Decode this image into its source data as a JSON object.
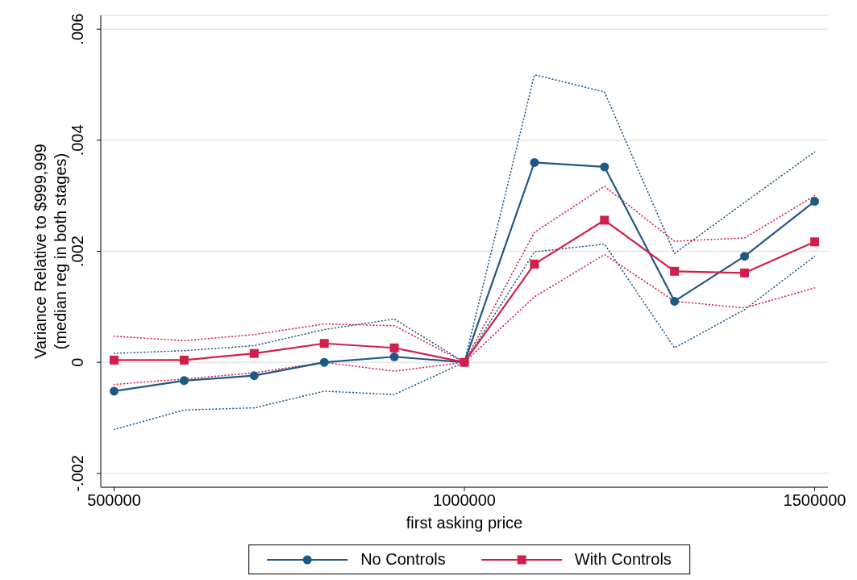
{
  "chart_data": {
    "type": "line",
    "xlabel": "first asking price",
    "ylabel": "Variance Relative to $999,999\n(median reg in both stages)",
    "x": [
      500000,
      600000,
      700000,
      800000,
      900000,
      1000000,
      1100000,
      1200000,
      1300000,
      1400000,
      1500000
    ],
    "xlim": [
      481000,
      1519000
    ],
    "xticks": [
      500000,
      1000000,
      1500000
    ],
    "ylim": [
      -0.00225,
      0.00625
    ],
    "yticks": [
      {
        "value": -0.002,
        "label": "-.002"
      },
      0,
      {
        "value": 0.002,
        "label": ".002"
      },
      {
        "value": 0.004,
        "label": ".004"
      },
      {
        "value": 0.006,
        "label": ".006"
      }
    ],
    "grid": "y",
    "legend": "bottom",
    "series": [
      {
        "color": "#1f5885",
        "marker": "none",
        "line_style": "dotted",
        "values": [
          0.00016,
          0.00021,
          0.0003,
          0.00059,
          0.00078,
          0,
          0.00518,
          0.00487,
          0.00196,
          0.00288,
          0.00379
        ]
      },
      {
        "color": "#1f5885",
        "marker": "none",
        "line_style": "dotted",
        "values": [
          -0.00121,
          -0.00086,
          -0.00082,
          -0.00052,
          -0.00058,
          0,
          0.00199,
          0.00213,
          0.00026,
          0.00095,
          0.00191
        ]
      },
      {
        "color": "#d21f4a",
        "marker": "none",
        "line_style": "dotted",
        "values": [
          0.00047,
          0.00039,
          0.0005,
          0.00069,
          0.00066,
          0,
          0.00234,
          0.00317,
          0.00218,
          0.00224,
          0.003
        ]
      },
      {
        "color": "#d21f4a",
        "marker": "none",
        "line_style": "dotted",
        "values": [
          -0.0004,
          -0.0003,
          -0.00019,
          0,
          -0.00016,
          0,
          0.00118,
          0.00194,
          0.0011,
          0.00098,
          0.00134
        ]
      },
      {
        "name": "No Controls",
        "color": "#1f5885",
        "marker": "circle",
        "line_style": "solid",
        "values": [
          -0.00052,
          -0.00033,
          -0.00024,
          0,
          0.0001,
          0,
          0.0036,
          0.00352,
          0.0011,
          0.00191,
          0.0029
        ]
      },
      {
        "name": "With Controls",
        "color": "#d21f4a",
        "marker": "square",
        "line_style": "solid",
        "values": [
          4e-05,
          4e-05,
          0.00016,
          0.00034,
          0.00026,
          0,
          0.00177,
          0.00256,
          0.00164,
          0.00161,
          0.00217
        ]
      }
    ]
  }
}
